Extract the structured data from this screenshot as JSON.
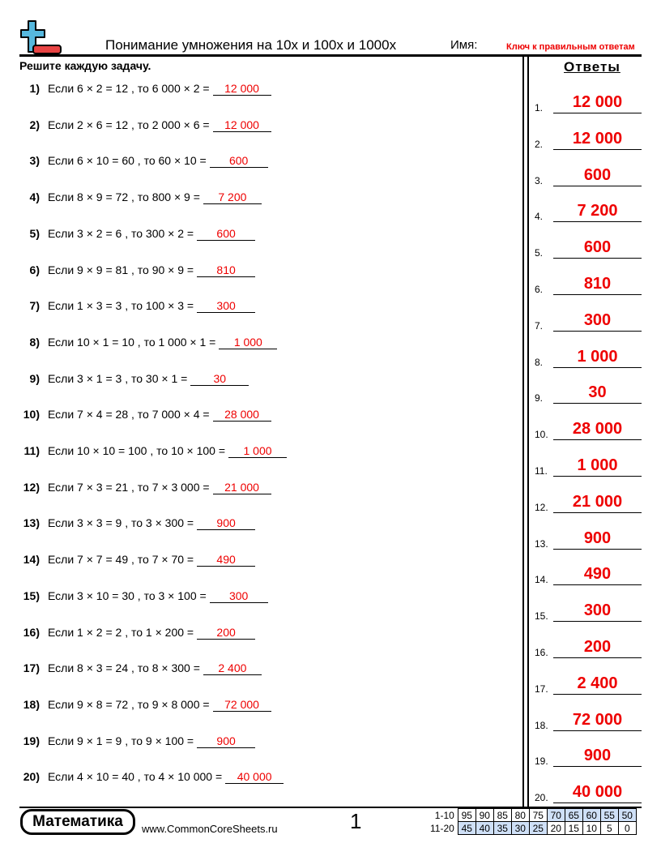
{
  "header": {
    "title": "Понимание умножения на 10x и 100x и 1000x",
    "name_label": "Имя:",
    "answer_key": "Ключ к правильным ответам",
    "instructions": "Решите каждую задачу.",
    "answers_heading": "Ответы"
  },
  "problems": [
    {
      "n": "1)",
      "text": "Если 6 × 2 = 12 , то 6 000 × 2 =",
      "answer": "12 000"
    },
    {
      "n": "2)",
      "text": "Если 2 × 6 = 12 , то 2 000 × 6 =",
      "answer": "12 000"
    },
    {
      "n": "3)",
      "text": "Если 6 × 10 = 60 , то 60 × 10 =",
      "answer": "600"
    },
    {
      "n": "4)",
      "text": "Если 8 × 9 = 72 , то 800 × 9 =",
      "answer": "7 200"
    },
    {
      "n": "5)",
      "text": "Если 3 × 2 = 6 , то 300 × 2 =",
      "answer": "600"
    },
    {
      "n": "6)",
      "text": "Если 9 × 9 = 81 , то 90 × 9 =",
      "answer": "810"
    },
    {
      "n": "7)",
      "text": "Если 1 × 3 = 3 , то 100 × 3 =",
      "answer": "300"
    },
    {
      "n": "8)",
      "text": "Если 10 × 1 = 10 , то 1 000 × 1 =",
      "answer": "1 000"
    },
    {
      "n": "9)",
      "text": "Если 3 × 1 = 3 , то 30 × 1 =",
      "answer": "30"
    },
    {
      "n": "10)",
      "text": "Если 7 × 4 = 28 , то 7 000 × 4 =",
      "answer": "28 000"
    },
    {
      "n": "11)",
      "text": "Если 10 × 10 = 100 , то 10 × 100 =",
      "answer": "1 000"
    },
    {
      "n": "12)",
      "text": "Если 7 × 3 = 21 , то 7 × 3 000 =",
      "answer": "21 000"
    },
    {
      "n": "13)",
      "text": "Если 3 × 3 = 9 , то 3 × 300 =",
      "answer": "900"
    },
    {
      "n": "14)",
      "text": "Если 7 × 7 = 49 , то 7 × 70 =",
      "answer": "490"
    },
    {
      "n": "15)",
      "text": "Если 3 × 10 = 30 , то 3 × 100 =",
      "answer": "300"
    },
    {
      "n": "16)",
      "text": "Если 1 × 2 = 2 , то 1 × 200 =",
      "answer": "200"
    },
    {
      "n": "17)",
      "text": "Если 8 × 3 = 24 , то 8 × 300 =",
      "answer": "2 400"
    },
    {
      "n": "18)",
      "text": "Если 9 × 8 = 72 , то 9 × 8 000 =",
      "answer": "72 000"
    },
    {
      "n": "19)",
      "text": "Если 9 × 1 = 9 , то 9 × 100 =",
      "answer": "900"
    },
    {
      "n": "20)",
      "text": "Если 4 × 10 = 40 , то 4 × 10 000 =",
      "answer": "40 000"
    }
  ],
  "footer": {
    "brand": "Математика",
    "site": "www.CommonCoreSheets.ru",
    "page": "1",
    "score_rows": [
      {
        "label": "1-10",
        "values": [
          "95",
          "90",
          "85",
          "80",
          "75",
          "70",
          "65",
          "60",
          "55",
          "50"
        ]
      },
      {
        "label": "11-20",
        "values": [
          "45",
          "40",
          "35",
          "30",
          "25",
          "20",
          "15",
          "10",
          "5",
          "0"
        ]
      }
    ]
  },
  "colors": {
    "answer": "#ee0000",
    "score_highlight": "#cfe0f7",
    "logo_blue": "#56b8de",
    "logo_red": "#e84444"
  }
}
